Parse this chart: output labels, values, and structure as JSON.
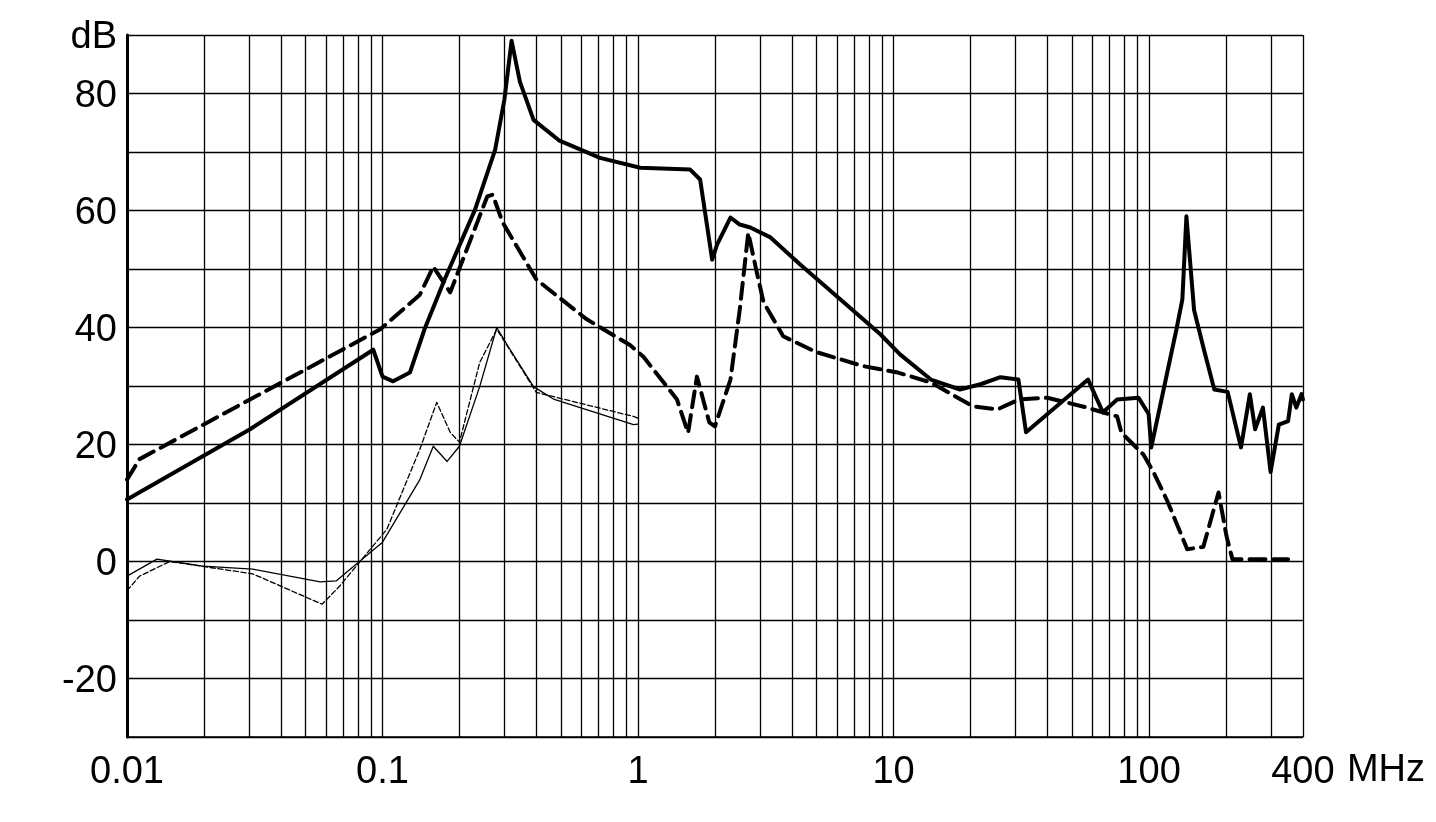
{
  "chart_data": {
    "type": "line",
    "xlabel": "MHz",
    "log": "x",
    "grid": true,
    "marker": "none",
    "xlim": [
      0.01,
      400
    ],
    "ylim": [
      -30,
      90
    ],
    "xticks": [
      0.01,
      {
        "value": 0.02,
        "label": null
      },
      {
        "value": 0.03,
        "label": null
      },
      {
        "value": 0.04,
        "label": null
      },
      {
        "value": 0.05,
        "label": null
      },
      {
        "value": 0.06,
        "label": null
      },
      {
        "value": 0.07,
        "label": null
      },
      {
        "value": 0.08,
        "label": null
      },
      {
        "value": 0.09,
        "label": null
      },
      0.1,
      {
        "value": 0.2,
        "label": null
      },
      {
        "value": 0.3,
        "label": null
      },
      {
        "value": 0.4,
        "label": null
      },
      {
        "value": 0.5,
        "label": null
      },
      {
        "value": 0.6,
        "label": null
      },
      {
        "value": 0.7,
        "label": null
      },
      {
        "value": 0.8,
        "label": null
      },
      {
        "value": 0.9,
        "label": null
      },
      1,
      {
        "value": 2,
        "label": null
      },
      {
        "value": 3,
        "label": null
      },
      {
        "value": 4,
        "label": null
      },
      {
        "value": 5,
        "label": null
      },
      {
        "value": 6,
        "label": null
      },
      {
        "value": 7,
        "label": null
      },
      {
        "value": 8,
        "label": null
      },
      {
        "value": 9,
        "label": null
      },
      10,
      {
        "value": 20,
        "label": null
      },
      {
        "value": 30,
        "label": null
      },
      {
        "value": 40,
        "label": null
      },
      {
        "value": 50,
        "label": null
      },
      {
        "value": 60,
        "label": null
      },
      {
        "value": 70,
        "label": null
      },
      {
        "value": 80,
        "label": null
      },
      {
        "value": 90,
        "label": null
      },
      100,
      {
        "value": 200,
        "label": null
      },
      {
        "value": 300,
        "label": null
      },
      400
    ],
    "yticks": [
      {
        "value": -30,
        "label": null
      },
      -20,
      {
        "value": -10,
        "label": null
      },
      0,
      {
        "value": 10,
        "label": null
      },
      20,
      {
        "value": 30,
        "label": null
      },
      40,
      {
        "value": 50,
        "label": null
      },
      60,
      {
        "value": 70,
        "label": null
      },
      80,
      {
        "value": 90,
        "label": "dB"
      }
    ],
    "series": [
      {
        "color": "#000000",
        "line_style": "solid",
        "x": [
          0.01,
          0.0303,
          0.092,
          0.1,
          0.11,
          0.128,
          0.146,
          0.175,
          0.23,
          0.276,
          0.3,
          0.32,
          0.345,
          0.39,
          0.49,
          0.71,
          1.02,
          1.6,
          1.75,
          1.95,
          2.04,
          2.3,
          2.5,
          2.75,
          3.3,
          4.3,
          6.2,
          8.9,
          10.6,
          14,
          18.2,
          21.9,
          26.2,
          30.8,
          33,
          57.7,
          66,
          75,
          91,
          99.6,
          102,
          114,
          128,
          135,
          140,
          150,
          164,
          180,
          203,
          229,
          248,
          260,
          279,
          299,
          322,
          350,
          362,
          377,
          395,
          400
        ],
        "values": [
          10.6,
          22.6,
          36.2,
          31.6,
          30.8,
          32.3,
          39.7,
          48.2,
          60.1,
          70.4,
          79,
          89,
          82,
          75.5,
          72,
          69,
          67.3,
          67,
          65.3,
          51.6,
          54.2,
          58.8,
          57.6,
          57.1,
          55.4,
          50.8,
          44.8,
          38.8,
          35.4,
          31.1,
          29.4,
          30.3,
          31.5,
          31.1,
          22.1,
          31.1,
          25.5,
          27.7,
          28,
          25.2,
          19.5,
          29.4,
          39.7,
          44.8,
          59,
          43,
          36.2,
          29.4,
          29,
          19.5,
          28.6,
          22.6,
          26.3,
          15.3,
          23.4,
          24,
          28.6,
          26.3,
          28.6,
          27.7
        ]
      },
      {
        "color": "#000000",
        "line_style": "dashed",
        "x": [
          0.01,
          0.0112,
          0.0303,
          0.098,
          0.14,
          0.158,
          0.184,
          0.257,
          0.27,
          0.295,
          0.4,
          0.63,
          0.93,
          1.05,
          1.42,
          1.57,
          1.7,
          1.9,
          2.0,
          2.3,
          2.5,
          2.7,
          2.9,
          3.1,
          3.7,
          4.98,
          7.6,
          10.4,
          14,
          20.5,
          25.5,
          31,
          40,
          55,
          75,
          78,
          95,
          104,
          118,
          141,
          163,
          187,
          201,
          212,
          350
        ],
        "values": [
          14,
          17.5,
          27.7,
          39.7,
          45.6,
          50.4,
          46,
          62.4,
          62.7,
          58,
          48.2,
          41.4,
          37,
          35,
          27.7,
          22,
          31.6,
          23.8,
          23.1,
          31.1,
          43,
          56.2,
          49.9,
          44.3,
          38.5,
          35.8,
          33.4,
          32.3,
          30.6,
          26.5,
          26,
          27.7,
          28,
          26.5,
          24.8,
          22,
          18.3,
          15.3,
          10.3,
          2.1,
          2.5,
          11.8,
          4.3,
          0.4,
          0.4
        ]
      },
      {
        "color": "#000000",
        "line_style": "solid",
        "x": [
          0.01,
          0.0131,
          0.0198,
          0.031,
          0.057,
          0.066,
          0.1,
          0.14,
          0.158,
          0.179,
          0.2,
          0.24,
          0.28,
          0.31,
          0.39,
          0.47,
          0.96,
          1.0
        ],
        "values": [
          -2.5,
          0.4,
          -0.8,
          -1.3,
          -3.5,
          -3.3,
          3.3,
          14,
          19.7,
          17.1,
          19.7,
          29.9,
          40,
          36.8,
          29.9,
          27.7,
          23.4,
          23.5
        ]
      },
      {
        "color": "#000000",
        "line_style": "dashed",
        "x": [
          0.01,
          0.0112,
          0.0147,
          0.031,
          0.058,
          0.068,
          0.104,
          0.14,
          0.163,
          0.184,
          0.2,
          0.24,
          0.28,
          0.4,
          0.96,
          1.0
        ],
        "values": [
          -5,
          -2.5,
          0,
          -2.1,
          -7.3,
          -4.2,
          5.5,
          19.2,
          27.2,
          22.1,
          20.4,
          34,
          39.7,
          28.9,
          24.8,
          24.5
        ]
      }
    ]
  }
}
